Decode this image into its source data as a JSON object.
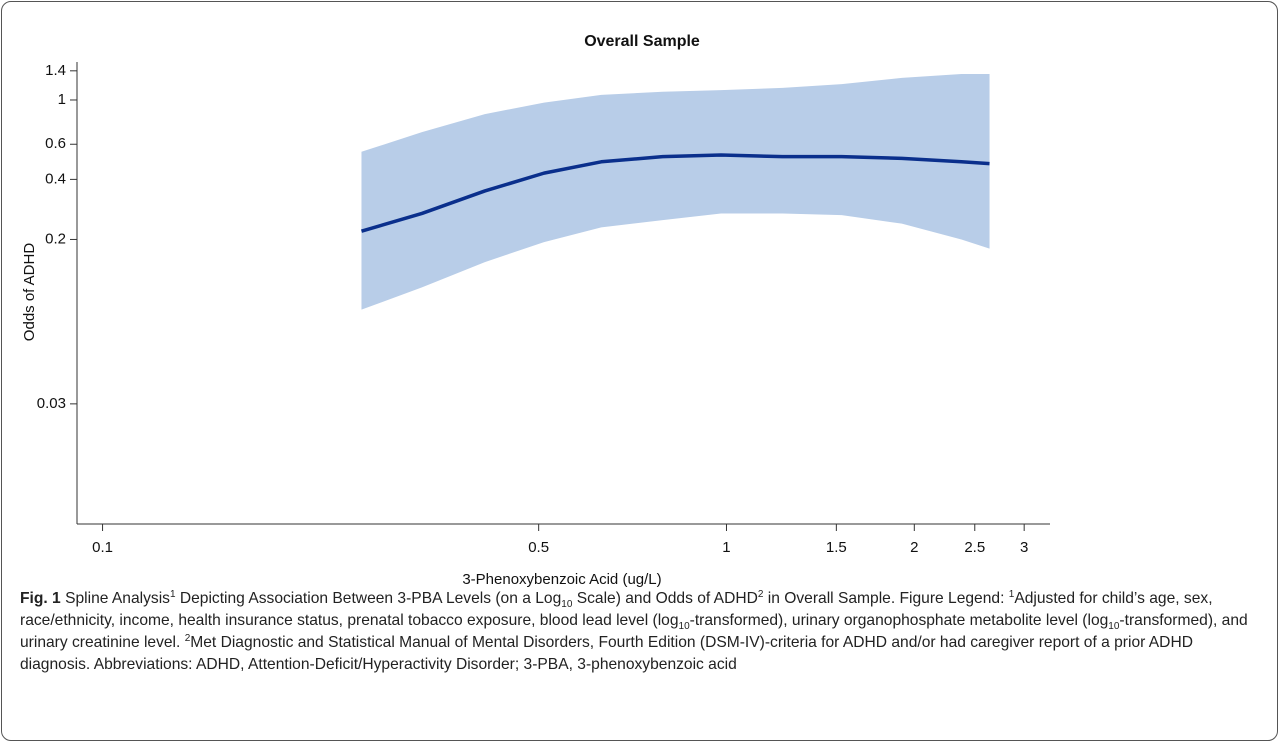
{
  "chart_data": {
    "type": "line",
    "title": "Overall Sample",
    "x_label": "3-Phenoxybenzoic Acid (ug/L)",
    "y_label": "Odds of ADHD",
    "x": [
      0.26,
      0.325,
      0.41,
      0.51,
      0.63,
      0.79,
      0.98,
      1.23,
      1.53,
      1.91,
      2.38,
      2.64
    ],
    "series": [
      {
        "color": "#0a2f8c",
        "values": [
          0.22,
          0.27,
          0.35,
          0.43,
          0.49,
          0.52,
          0.53,
          0.52,
          0.52,
          0.51,
          0.49,
          0.48
        ]
      }
    ],
    "band": {
      "color": "#b8cde8",
      "lower": [
        0.089,
        0.115,
        0.154,
        0.194,
        0.23,
        0.25,
        0.27,
        0.27,
        0.265,
        0.24,
        0.2,
        0.18
      ],
      "upper": [
        0.55,
        0.69,
        0.85,
        0.97,
        1.06,
        1.1,
        1.12,
        1.15,
        1.2,
        1.29,
        1.35,
        1.35
      ]
    },
    "xlim": [
      0.091,
      3.3
    ],
    "xticks": [
      0.1,
      0.5,
      1,
      1.5,
      2,
      2.5,
      3
    ],
    "xscale": "log",
    "ylim": [
      0.0075,
      1.55
    ],
    "yticks": [
      0.03,
      0.2,
      0.4,
      0.6,
      1,
      1.4
    ],
    "yscale": "log"
  },
  "caption": {
    "label": "Fig. 1",
    "parts": [
      " Spline Analysis",
      "1",
      " Depicting Association Between 3-PBA Levels (on a Log",
      "10",
      " Scale) and Odds of ADHD",
      "2",
      " in Overall Sample. Figure Legend: ",
      "1",
      "Adjusted for child’s age, sex, race/ethnicity, income, health insurance status, prenatal tobacco exposure, blood lead level (log",
      "10",
      "-transformed), urinary organophosphate metabolite level (log",
      "10",
      "-transformed), and urinary creatinine level. ",
      "2",
      "Met Diagnostic and Statistical Manual of Mental Disorders, Fourth Edition (DSM-IV)-criteria for ADHD and/or had caregiver report of a prior ADHD diagnosis. Abbreviations: ADHD, Attention-Deficit/Hyperactivity Disorder; 3-PBA, 3-phenoxybenzoic acid"
    ]
  }
}
